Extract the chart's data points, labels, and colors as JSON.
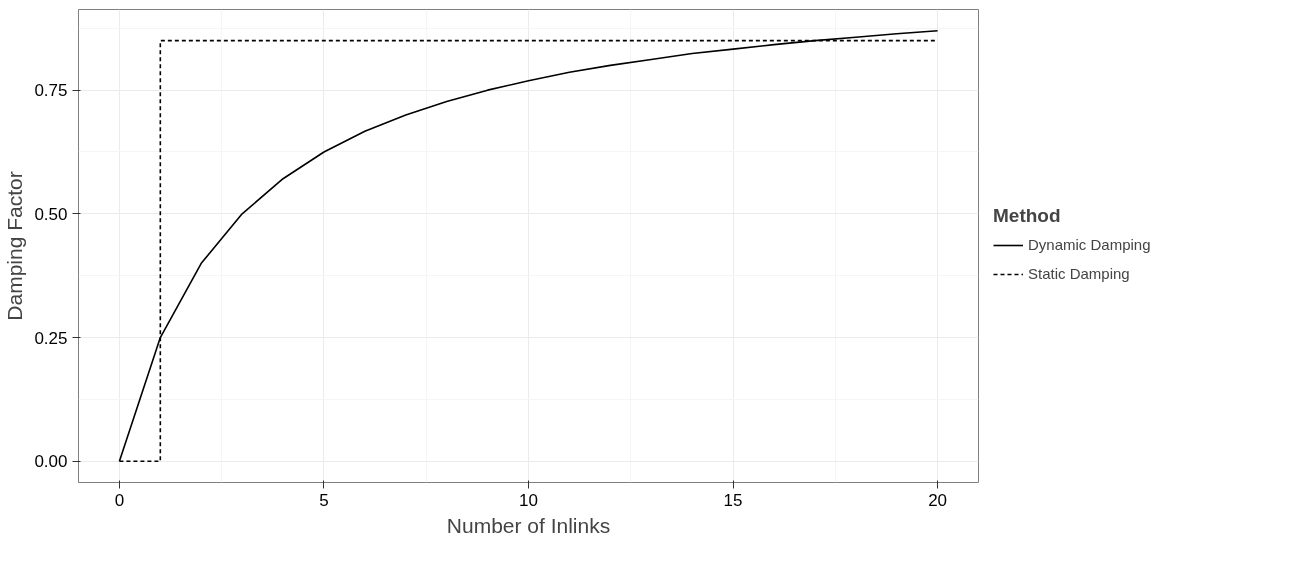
{
  "chart_data": {
    "type": "line",
    "xlabel": "Number of Inlinks",
    "ylabel": "Damping Factor",
    "legend_title": "Method",
    "x": [
      0,
      1,
      2,
      3,
      4,
      5,
      6,
      7,
      8,
      9,
      10,
      11,
      12,
      13,
      14,
      15,
      16,
      17,
      18,
      19,
      20
    ],
    "series": [
      {
        "name": "Dynamic Damping",
        "color": "#000000",
        "line_style": "solid",
        "values": [
          0,
          0.25,
          0.4,
          0.5,
          0.571,
          0.625,
          0.667,
          0.7,
          0.727,
          0.75,
          0.769,
          0.786,
          0.8,
          0.812,
          0.824,
          0.833,
          0.842,
          0.85,
          0.857,
          0.864,
          0.87
        ]
      },
      {
        "name": "Static Damping",
        "type": "step",
        "color": "#000000",
        "line_style": "dashed",
        "x": [
          0,
          1,
          20
        ],
        "values": [
          0,
          0.85,
          0.85
        ]
      }
    ],
    "xlim": [
      -1,
      21
    ],
    "ylim": [
      -0.043,
      0.913
    ],
    "xticks": [
      0,
      5,
      10,
      15,
      20
    ],
    "yticks": [
      {
        "value": 0,
        "label": "0.00"
      },
      {
        "value": 0.25,
        "label": "0.25"
      },
      {
        "value": 0.5,
        "label": "0.50"
      },
      {
        "value": 0.75,
        "label": "0.75"
      }
    ],
    "grid": true,
    "legend": "right",
    "marker": "none"
  }
}
